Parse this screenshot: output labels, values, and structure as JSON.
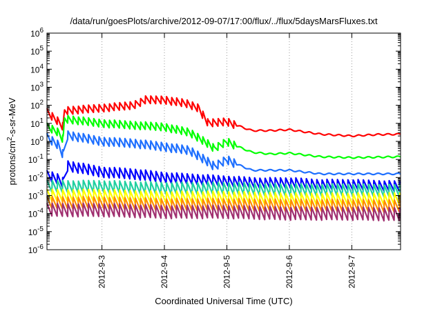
{
  "chart_data": {
    "type": "line",
    "title": "/data/run/goesPlots/archive/2012-09-07/17:00/flux/../flux/5daysMarsFluxes.txt",
    "xlabel": "Coordinated Universal Time (UTC)",
    "ylabel_parts": {
      "base": "protons/cm",
      "sup": "2",
      "rest": "-s-sr-MeV"
    },
    "y_scale": "log",
    "ylim_exponents": [
      -6,
      6
    ],
    "yticks": [
      {
        "mant": "10",
        "exp": "-6"
      },
      {
        "mant": "10",
        "exp": "-5"
      },
      {
        "mant": "10",
        "exp": "-4"
      },
      {
        "mant": "10",
        "exp": "-3"
      },
      {
        "mant": "10",
        "exp": "-2"
      },
      {
        "mant": "10",
        "exp": "-1"
      },
      {
        "mant": "10",
        "exp": "0"
      },
      {
        "mant": "10",
        "exp": "1"
      },
      {
        "mant": "10",
        "exp": "2"
      },
      {
        "mant": "10",
        "exp": "3"
      },
      {
        "mant": "10",
        "exp": "4"
      },
      {
        "mant": "10",
        "exp": "5"
      },
      {
        "mant": "10",
        "exp": "6"
      }
    ],
    "x_range_days": [
      2.12,
      7.78
    ],
    "xticks": [
      {
        "day": 3,
        "label": "2012-9-3"
      },
      {
        "day": 4,
        "label": "2012-9-4"
      },
      {
        "day": 5,
        "label": "2012-9-5"
      },
      {
        "day": 6,
        "label": "2012-9-6"
      },
      {
        "day": 7,
        "label": "2012-9-7"
      }
    ],
    "grid": true,
    "sawtooth_period_days": 0.083,
    "series": [
      {
        "color": "#ff0000",
        "sawtooth_amp_log": 0.45,
        "sawtooth_end_day": 5.15,
        "points": [
          [
            2.12,
            1.6
          ],
          [
            2.3,
            1.1
          ],
          [
            2.38,
            0.8
          ],
          [
            2.4,
            1.7
          ],
          [
            3.0,
            1.85
          ],
          [
            3.5,
            2.0
          ],
          [
            3.7,
            2.3
          ],
          [
            4.0,
            2.3
          ],
          [
            4.35,
            2.1
          ],
          [
            4.55,
            1.85
          ],
          [
            4.7,
            1.0
          ],
          [
            5.0,
            1.1
          ],
          [
            5.15,
            0.9
          ],
          [
            5.4,
            0.6
          ],
          [
            5.7,
            0.6
          ],
          [
            6.0,
            0.65
          ],
          [
            6.5,
            0.4
          ],
          [
            7.0,
            0.3
          ],
          [
            7.4,
            0.38
          ],
          [
            7.78,
            0.4
          ]
        ]
      },
      {
        "color": "#00ff00",
        "sawtooth_amp_log": 0.45,
        "sawtooth_end_day": 5.15,
        "points": [
          [
            2.12,
            0.8
          ],
          [
            2.3,
            0.5
          ],
          [
            2.38,
            0.1
          ],
          [
            2.4,
            1.25
          ],
          [
            3.0,
            1.0
          ],
          [
            3.5,
            0.9
          ],
          [
            4.0,
            0.8
          ],
          [
            4.4,
            0.5
          ],
          [
            4.6,
            0.1
          ],
          [
            4.8,
            -0.4
          ],
          [
            5.0,
            0.0
          ],
          [
            5.15,
            -0.25
          ],
          [
            5.4,
            -0.6
          ],
          [
            5.7,
            -0.7
          ],
          [
            6.0,
            -0.65
          ],
          [
            6.5,
            -0.85
          ],
          [
            7.0,
            -0.9
          ],
          [
            7.78,
            -0.85
          ]
        ]
      },
      {
        "color": "#1e6fff",
        "sawtooth_amp_log": 0.5,
        "sawtooth_end_day": 5.15,
        "points": [
          [
            2.12,
            0.2
          ],
          [
            2.3,
            -0.2
          ],
          [
            2.38,
            -0.75
          ],
          [
            2.45,
            0.35
          ],
          [
            3.0,
            0.0
          ],
          [
            3.5,
            -0.1
          ],
          [
            4.0,
            -0.3
          ],
          [
            4.4,
            -0.5
          ],
          [
            4.6,
            -0.9
          ],
          [
            4.8,
            -1.4
          ],
          [
            5.0,
            -1.0
          ],
          [
            5.15,
            -1.25
          ],
          [
            5.4,
            -1.6
          ],
          [
            5.7,
            -1.6
          ],
          [
            6.0,
            -1.6
          ],
          [
            6.5,
            -1.8
          ],
          [
            7.0,
            -1.8
          ],
          [
            7.78,
            -1.8
          ]
        ]
      },
      {
        "color": "#0000ff",
        "sawtooth_amp_log": 0.6,
        "sawtooth_end_day": 7.78,
        "points": [
          [
            2.12,
            -1.9
          ],
          [
            2.3,
            -2.1
          ],
          [
            2.38,
            -2.3
          ],
          [
            2.45,
            -1.35
          ],
          [
            3.0,
            -1.7
          ],
          [
            3.5,
            -1.8
          ],
          [
            4.0,
            -2.0
          ],
          [
            4.5,
            -2.1
          ],
          [
            5.0,
            -2.2
          ],
          [
            5.5,
            -2.3
          ],
          [
            6.0,
            -2.3
          ],
          [
            6.5,
            -2.4
          ],
          [
            7.0,
            -2.4
          ],
          [
            7.78,
            -2.5
          ]
        ]
      },
      {
        "color": "#20d0a0",
        "sawtooth_amp_log": 0.7,
        "sawtooth_end_day": 7.78,
        "points": [
          [
            2.12,
            -2.5
          ],
          [
            3.0,
            -2.5
          ],
          [
            4.0,
            -2.6
          ],
          [
            5.0,
            -2.6
          ],
          [
            6.0,
            -2.7
          ],
          [
            7.0,
            -2.7
          ],
          [
            7.78,
            -2.75
          ]
        ]
      },
      {
        "color": "#ffff00",
        "sawtooth_amp_log": 0.7,
        "sawtooth_end_day": 7.78,
        "points": [
          [
            2.12,
            -3.0
          ],
          [
            3.0,
            -3.0
          ],
          [
            4.0,
            -3.1
          ],
          [
            5.0,
            -3.1
          ],
          [
            6.0,
            -3.2
          ],
          [
            7.0,
            -3.2
          ],
          [
            7.78,
            -3.2
          ]
        ]
      },
      {
        "color": "#ff8c00",
        "sawtooth_amp_log": 0.7,
        "sawtooth_end_day": 7.78,
        "points": [
          [
            2.12,
            -3.4
          ],
          [
            3.0,
            -3.4
          ],
          [
            4.0,
            -3.5
          ],
          [
            5.0,
            -3.5
          ],
          [
            6.0,
            -3.55
          ],
          [
            7.0,
            -3.55
          ],
          [
            7.78,
            -3.6
          ]
        ]
      },
      {
        "color": "#a03070",
        "sawtooth_amp_log": 0.75,
        "sawtooth_end_day": 7.78,
        "points": [
          [
            2.12,
            -3.8
          ],
          [
            3.0,
            -3.8
          ],
          [
            4.0,
            -3.9
          ],
          [
            5.0,
            -3.9
          ],
          [
            6.0,
            -4.0
          ],
          [
            7.0,
            -4.0
          ],
          [
            7.78,
            -4.05
          ]
        ]
      }
    ]
  }
}
